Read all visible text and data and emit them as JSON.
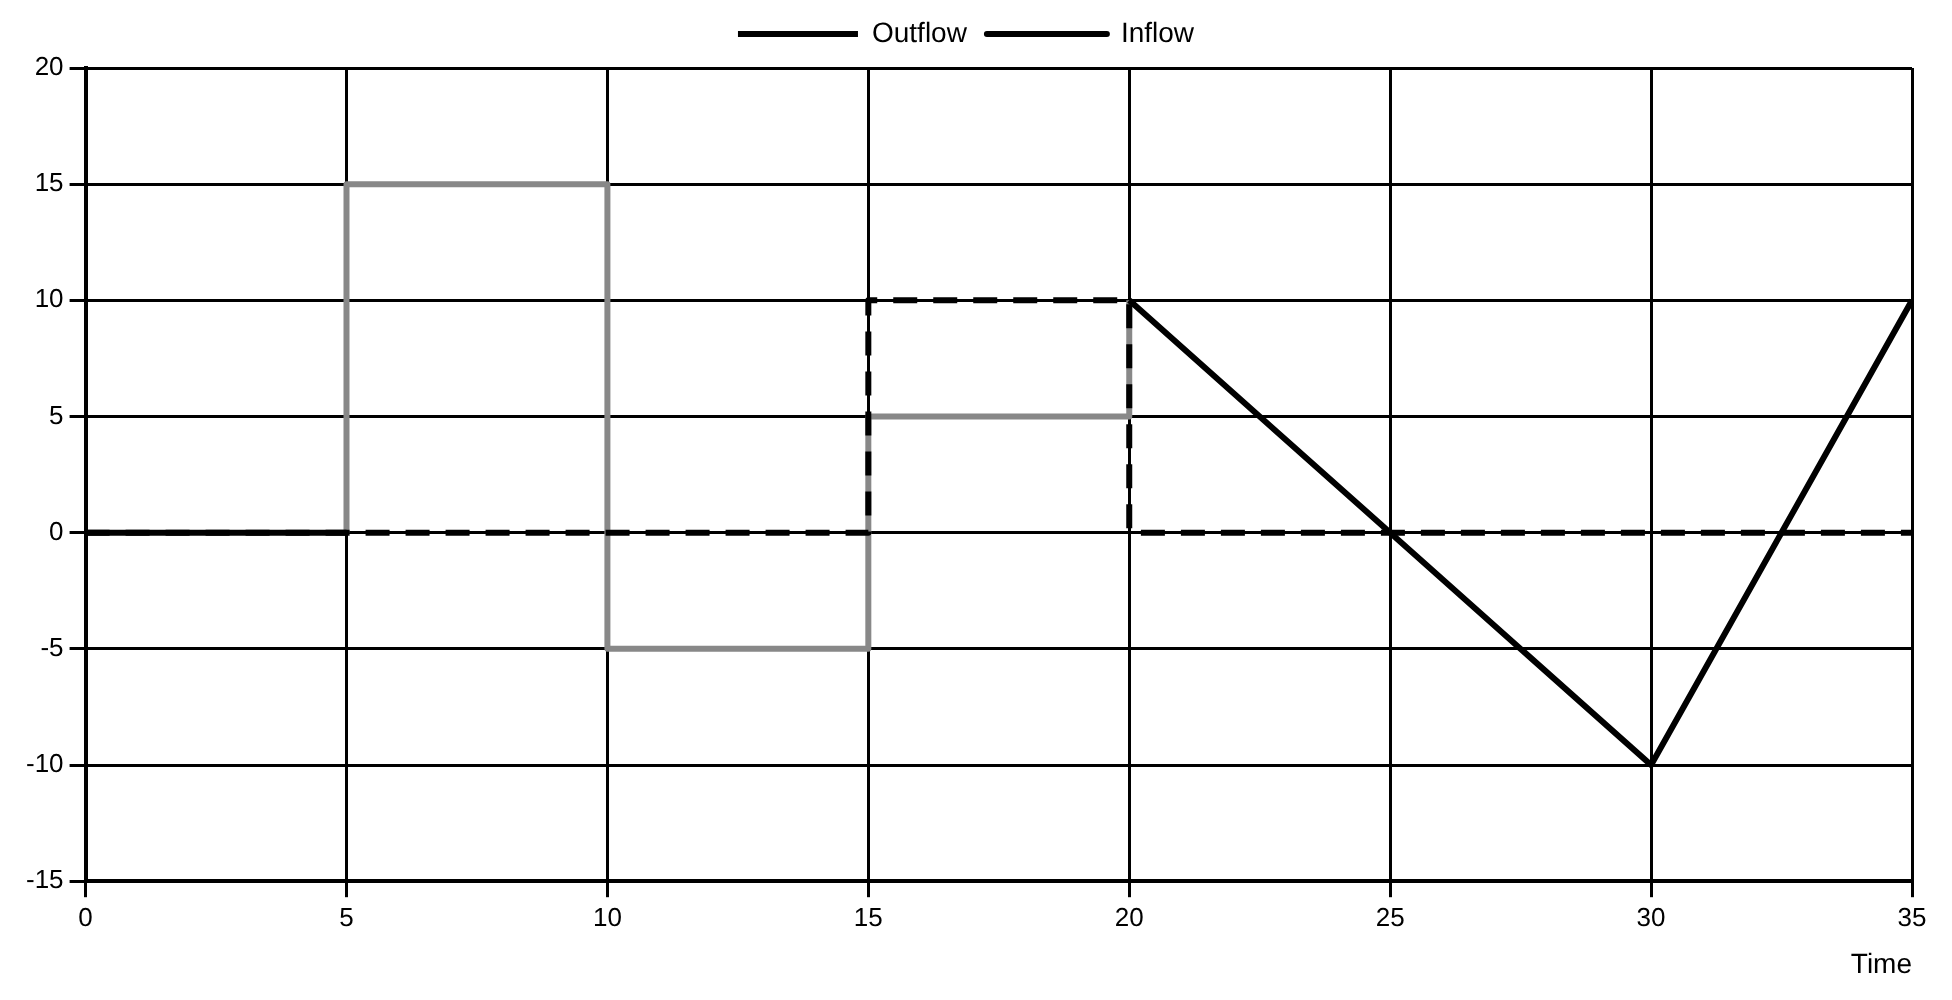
{
  "chart_data": {
    "type": "line",
    "xlabel": "Time",
    "series": [
      {
        "name": "Outflow",
        "color": "#000000",
        "line_style": "dashed",
        "x": [
          0,
          15,
          15,
          20,
          20,
          35
        ],
        "values": [
          0,
          0,
          10,
          10,
          0,
          0
        ]
      },
      {
        "name": "Inflow",
        "color": "#000000",
        "line_style": "solid",
        "x": [
          0,
          5,
          10,
          20,
          30,
          35
        ],
        "values": [
          0,
          0,
          null,
          10,
          -10,
          10
        ]
      },
      {
        "color": "#888888",
        "line_style": "solid",
        "x": [
          5,
          5,
          10,
          10,
          15,
          15,
          20,
          20
        ],
        "values": [
          0,
          15,
          15,
          -5,
          -5,
          5,
          5,
          10
        ]
      }
    ],
    "xlim": [
      0,
      35
    ],
    "xticks": [
      0,
      5,
      10,
      15,
      20,
      25,
      30,
      35
    ],
    "ylim": [
      -15,
      20
    ],
    "yticks": [
      -15,
      -10,
      -5,
      0,
      5,
      10,
      15,
      20
    ],
    "grid": true,
    "legend": "top",
    "marker": "none"
  }
}
